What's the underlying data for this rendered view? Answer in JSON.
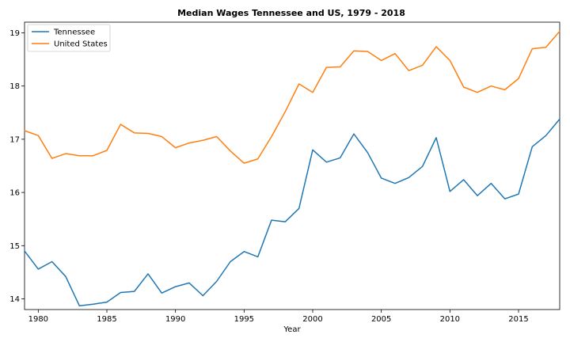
{
  "chart_data": {
    "type": "line",
    "title": "Median Wages Tennessee and US, 1979 - 2018",
    "xlabel": "Year",
    "ylabel": "",
    "xlim": [
      1979,
      2018
    ],
    "ylim": [
      13.8,
      19.2
    ],
    "x_ticks": [
      1980,
      1985,
      1990,
      1995,
      2000,
      2005,
      2010,
      2015
    ],
    "y_ticks": [
      14,
      15,
      16,
      17,
      18,
      19
    ],
    "grid": false,
    "legend_position": "top-left",
    "x": [
      1979,
      1980,
      1981,
      1982,
      1983,
      1984,
      1985,
      1986,
      1987,
      1988,
      1989,
      1990,
      1991,
      1992,
      1993,
      1994,
      1995,
      1996,
      1997,
      1998,
      1999,
      2000,
      2001,
      2002,
      2003,
      2004,
      2005,
      2006,
      2007,
      2008,
      2009,
      2010,
      2011,
      2012,
      2013,
      2014,
      2015,
      2016,
      2017,
      2018
    ],
    "series": [
      {
        "name": "Tennessee",
        "color": "#1f77b4",
        "values": [
          14.9,
          14.56,
          14.7,
          14.42,
          13.87,
          13.9,
          13.94,
          14.12,
          14.14,
          14.47,
          14.11,
          14.23,
          14.3,
          14.06,
          14.33,
          14.7,
          14.89,
          14.79,
          15.48,
          15.45,
          15.7,
          16.8,
          16.57,
          16.65,
          17.1,
          16.75,
          16.27,
          16.17,
          16.28,
          16.49,
          17.03,
          16.02,
          16.24,
          15.94,
          16.17,
          15.88,
          15.97,
          16.86,
          17.07,
          17.38
        ]
      },
      {
        "name": "United States",
        "color": "#ff7f0e",
        "values": [
          17.16,
          17.07,
          16.64,
          16.73,
          16.69,
          16.69,
          16.79,
          17.28,
          17.12,
          17.11,
          17.05,
          16.84,
          16.93,
          16.98,
          17.05,
          16.78,
          16.55,
          16.63,
          17.05,
          17.52,
          18.04,
          17.88,
          18.35,
          18.36,
          18.66,
          18.65,
          18.48,
          18.61,
          18.29,
          18.39,
          18.74,
          18.48,
          17.98,
          17.88,
          18.0,
          17.93,
          18.14,
          18.7,
          18.73,
          19.03
        ]
      }
    ]
  }
}
